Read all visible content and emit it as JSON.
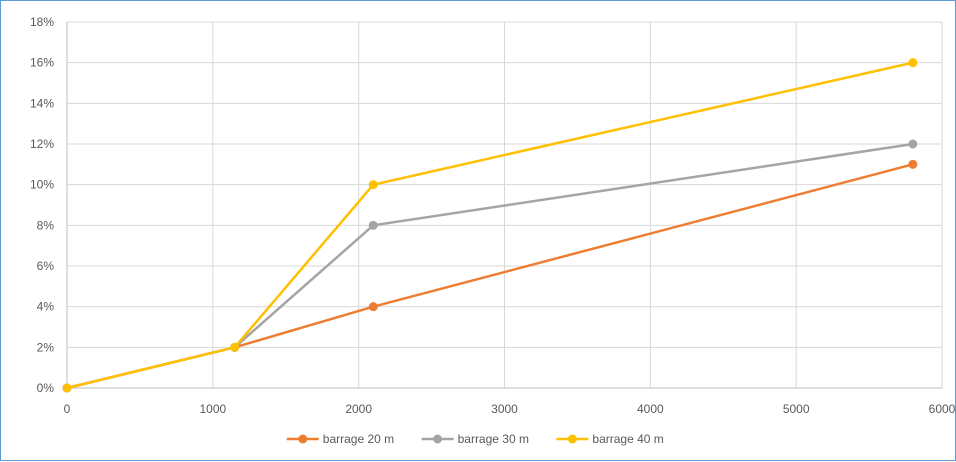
{
  "chart_data": {
    "type": "line",
    "xlim": [
      0,
      6000
    ],
    "ylim": [
      0,
      0.18
    ],
    "x_ticks": [
      0,
      1000,
      2000,
      3000,
      4000,
      5000,
      6000
    ],
    "x_tick_labels": [
      "0",
      "1000",
      "2000",
      "3000",
      "4000",
      "5000",
      "6000"
    ],
    "y_ticks": [
      0,
      0.02,
      0.04,
      0.06,
      0.08,
      0.1,
      0.12,
      0.14,
      0.16,
      0.18
    ],
    "y_tick_labels": [
      "0%",
      "2%",
      "4%",
      "6%",
      "8%",
      "10%",
      "12%",
      "14%",
      "16%",
      "18%"
    ],
    "grid": true,
    "legend_position": "bottom",
    "x": [
      0,
      1150,
      2100,
      5800
    ],
    "series": [
      {
        "name": "barrage 20 m",
        "color": "#ed7d31",
        "values": [
          0,
          0.02,
          0.04,
          0.11
        ]
      },
      {
        "name": "barrage 30 m",
        "color": "#a5a5a5",
        "values": [
          0,
          0.02,
          0.08,
          0.12
        ]
      },
      {
        "name": "barrage 40 m",
        "color": "#ffc000",
        "values": [
          0,
          0.02,
          0.1,
          0.16
        ]
      }
    ]
  }
}
